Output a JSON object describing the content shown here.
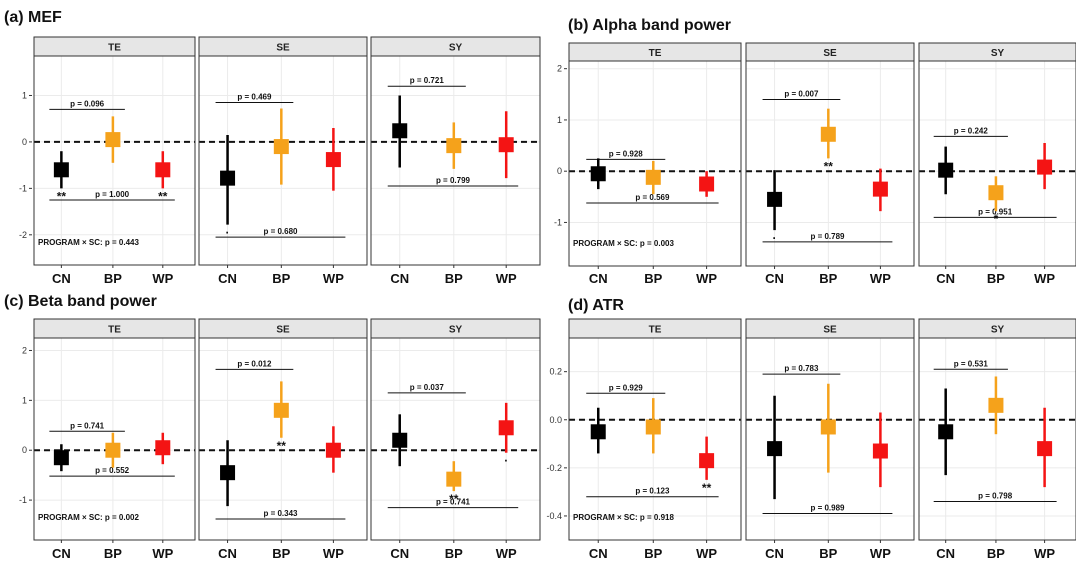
{
  "colors": {
    "CN": "#000000",
    "BP": "#f5a21b",
    "WP": "#f41414",
    "strip_bg": "#e6e6e6",
    "panel_border": "#333333",
    "grid": "#ebebeb",
    "zero_line": "#111111"
  },
  "chart_data": [
    {
      "id": "a",
      "type": "scatter",
      "title": "(a) MEF",
      "facets": [
        "TE",
        "SE",
        "SY"
      ],
      "categories": [
        "CN",
        "BP",
        "WP"
      ],
      "ylim": [
        -2.65,
        1.85
      ],
      "yticks": [
        1,
        0,
        -1,
        -2
      ],
      "ytick_labels": [
        "1",
        "0",
        "-1",
        "-2"
      ],
      "zero_line": true,
      "program_sc": "PROGRAM × SC: p = 0.443",
      "groups": [
        {
          "facet": "TE",
          "points": [
            {
              "category": "CN",
              "value": -0.6,
              "lower": -1.0,
              "upper": -0.2,
              "sig": "**"
            },
            {
              "category": "BP",
              "value": 0.05,
              "lower": -0.45,
              "upper": 0.55,
              "sig": ""
            },
            {
              "category": "WP",
              "value": -0.6,
              "lower": -1.0,
              "upper": -0.2,
              "sig": "**"
            }
          ],
          "comparisons": [
            {
              "from": "CN",
              "to": "BP",
              "label": "p = 0.096",
              "y": 0.7
            },
            {
              "from": "CN",
              "to": "WP",
              "label": "p = 1.000",
              "y": -1.25
            }
          ]
        },
        {
          "facet": "SE",
          "points": [
            {
              "category": "CN",
              "value": -0.78,
              "lower": -1.78,
              "upper": 0.15,
              "sig": "·"
            },
            {
              "category": "BP",
              "value": -0.1,
              "lower": -0.92,
              "upper": 0.72,
              "sig": ""
            },
            {
              "category": "WP",
              "value": -0.38,
              "lower": -1.05,
              "upper": 0.3,
              "sig": ""
            }
          ],
          "comparisons": [
            {
              "from": "CN",
              "to": "BP",
              "label": "p = 0.469",
              "y": 0.85
            },
            {
              "from": "CN",
              "to": "WP",
              "label": "p = 0.680",
              "y": -2.05
            }
          ]
        },
        {
          "facet": "SY",
          "points": [
            {
              "category": "CN",
              "value": 0.24,
              "lower": -0.55,
              "upper": 1.0,
              "sig": ""
            },
            {
              "category": "BP",
              "value": -0.08,
              "lower": -0.58,
              "upper": 0.42,
              "sig": ""
            },
            {
              "category": "WP",
              "value": -0.06,
              "lower": -0.78,
              "upper": 0.66,
              "sig": ""
            }
          ],
          "comparisons": [
            {
              "from": "CN",
              "to": "BP",
              "label": "p = 0.721",
              "y": 1.2
            },
            {
              "from": "CN",
              "to": "WP",
              "label": "p = 0.799",
              "y": -0.95
            }
          ]
        }
      ]
    },
    {
      "id": "b",
      "type": "scatter",
      "title": "(b) Alpha band power",
      "facets": [
        "TE",
        "SE",
        "SY"
      ],
      "categories": [
        "CN",
        "BP",
        "WP"
      ],
      "ylim": [
        -1.85,
        2.15
      ],
      "yticks": [
        2,
        1,
        0,
        -1
      ],
      "ytick_labels": [
        "2",
        "1",
        "0",
        "-1"
      ],
      "zero_line": true,
      "program_sc": "PROGRAM × SC: p = 0.003",
      "groups": [
        {
          "facet": "TE",
          "points": [
            {
              "category": "CN",
              "value": -0.05,
              "lower": -0.35,
              "upper": 0.25,
              "sig": ""
            },
            {
              "category": "BP",
              "value": -0.12,
              "lower": -0.45,
              "upper": 0.2,
              "sig": ""
            },
            {
              "category": "WP",
              "value": -0.25,
              "lower": -0.5,
              "upper": 0.0,
              "sig": ""
            }
          ],
          "comparisons": [
            {
              "from": "CN",
              "to": "BP",
              "label": "p = 0.928",
              "y": 0.23
            },
            {
              "from": "CN",
              "to": "WP",
              "label": "p = 0.569",
              "y": -0.62
            }
          ]
        },
        {
          "facet": "SE",
          "points": [
            {
              "category": "CN",
              "value": -0.55,
              "lower": -1.15,
              "upper": 0.02,
              "sig": "·"
            },
            {
              "category": "BP",
              "value": 0.72,
              "lower": 0.25,
              "upper": 1.22,
              "sig": "**"
            },
            {
              "category": "WP",
              "value": -0.35,
              "lower": -0.78,
              "upper": 0.05,
              "sig": ""
            }
          ],
          "comparisons": [
            {
              "from": "CN",
              "to": "BP",
              "label": "p = 0.007",
              "y": 1.4
            },
            {
              "from": "CN",
              "to": "WP",
              "label": "p = 0.789",
              "y": -1.38
            }
          ]
        },
        {
          "facet": "SY",
          "points": [
            {
              "category": "CN",
              "value": 0.02,
              "lower": -0.45,
              "upper": 0.48,
              "sig": ""
            },
            {
              "category": "BP",
              "value": -0.42,
              "lower": -0.78,
              "upper": -0.1,
              "sig": "*"
            },
            {
              "category": "WP",
              "value": 0.08,
              "lower": -0.35,
              "upper": 0.55,
              "sig": ""
            }
          ],
          "comparisons": [
            {
              "from": "CN",
              "to": "BP",
              "label": "p = 0.242",
              "y": 0.68
            },
            {
              "from": "CN",
              "to": "WP",
              "label": "p = 0.951",
              "y": -0.9
            }
          ]
        }
      ]
    },
    {
      "id": "c",
      "type": "scatter",
      "title": "(c) Beta band power",
      "facets": [
        "TE",
        "SE",
        "SY"
      ],
      "categories": [
        "CN",
        "BP",
        "WP"
      ],
      "ylim": [
        -1.8,
        2.25
      ],
      "yticks": [
        2,
        1,
        0,
        -1
      ],
      "ytick_labels": [
        "2",
        "1",
        "0",
        "-1"
      ],
      "zero_line": true,
      "program_sc": "PROGRAM × SC: p = 0.002",
      "groups": [
        {
          "facet": "TE",
          "points": [
            {
              "category": "CN",
              "value": -0.15,
              "lower": -0.42,
              "upper": 0.12,
              "sig": ""
            },
            {
              "category": "BP",
              "value": 0.0,
              "lower": -0.35,
              "upper": 0.35,
              "sig": ""
            },
            {
              "category": "WP",
              "value": 0.05,
              "lower": -0.28,
              "upper": 0.35,
              "sig": ""
            }
          ],
          "comparisons": [
            {
              "from": "CN",
              "to": "BP",
              "label": "p = 0.741",
              "y": 0.38
            },
            {
              "from": "CN",
              "to": "WP",
              "label": "p = 0.552",
              "y": -0.52
            }
          ]
        },
        {
          "facet": "SE",
          "points": [
            {
              "category": "CN",
              "value": -0.45,
              "lower": -1.12,
              "upper": 0.2,
              "sig": ""
            },
            {
              "category": "BP",
              "value": 0.8,
              "lower": 0.25,
              "upper": 1.38,
              "sig": "**"
            },
            {
              "category": "WP",
              "value": 0.0,
              "lower": -0.45,
              "upper": 0.48,
              "sig": ""
            }
          ],
          "comparisons": [
            {
              "from": "CN",
              "to": "BP",
              "label": "p = 0.012",
              "y": 1.62
            },
            {
              "from": "CN",
              "to": "WP",
              "label": "p = 0.343",
              "y": -1.38
            }
          ]
        },
        {
          "facet": "SY",
          "points": [
            {
              "category": "CN",
              "value": 0.2,
              "lower": -0.32,
              "upper": 0.72,
              "sig": ""
            },
            {
              "category": "BP",
              "value": -0.58,
              "lower": -0.82,
              "upper": -0.22,
              "sig": "**"
            },
            {
              "category": "WP",
              "value": 0.45,
              "lower": -0.05,
              "upper": 0.95,
              "sig": "·"
            }
          ],
          "comparisons": [
            {
              "from": "CN",
              "to": "BP",
              "label": "p = 0.037",
              "y": 1.15
            },
            {
              "from": "CN",
              "to": "WP",
              "label": "p = 0.741",
              "y": -1.15
            }
          ]
        }
      ]
    },
    {
      "id": "d",
      "type": "scatter",
      "title": "(d) ATR",
      "facets": [
        "TE",
        "SE",
        "SY"
      ],
      "categories": [
        "CN",
        "BP",
        "WP"
      ],
      "ylim": [
        -0.5,
        0.34
      ],
      "yticks": [
        0.2,
        0.0,
        -0.2,
        -0.4
      ],
      "ytick_labels": [
        "0.2",
        "0.0",
        "-0.2",
        "-0.4"
      ],
      "zero_line": true,
      "program_sc": "PROGRAM × SC: p = 0.918",
      "groups": [
        {
          "facet": "TE",
          "points": [
            {
              "category": "CN",
              "value": -0.05,
              "lower": -0.14,
              "upper": 0.05,
              "sig": ""
            },
            {
              "category": "BP",
              "value": -0.03,
              "lower": -0.14,
              "upper": 0.09,
              "sig": ""
            },
            {
              "category": "WP",
              "value": -0.17,
              "lower": -0.25,
              "upper": -0.07,
              "sig": "**"
            }
          ],
          "comparisons": [
            {
              "from": "CN",
              "to": "BP",
              "label": "p = 0.929",
              "y": 0.11
            },
            {
              "from": "CN",
              "to": "WP",
              "label": "p = 0.123",
              "y": -0.32
            }
          ]
        },
        {
          "facet": "SE",
          "points": [
            {
              "category": "CN",
              "value": -0.12,
              "lower": -0.33,
              "upper": 0.1,
              "sig": ""
            },
            {
              "category": "BP",
              "value": -0.03,
              "lower": -0.22,
              "upper": 0.15,
              "sig": ""
            },
            {
              "category": "WP",
              "value": -0.13,
              "lower": -0.28,
              "upper": 0.03,
              "sig": ""
            }
          ],
          "comparisons": [
            {
              "from": "CN",
              "to": "BP",
              "label": "p = 0.783",
              "y": 0.19
            },
            {
              "from": "CN",
              "to": "WP",
              "label": "p = 0.989",
              "y": -0.39
            }
          ]
        },
        {
          "facet": "SY",
          "points": [
            {
              "category": "CN",
              "value": -0.05,
              "lower": -0.23,
              "upper": 0.13,
              "sig": ""
            },
            {
              "category": "BP",
              "value": 0.06,
              "lower": -0.06,
              "upper": 0.18,
              "sig": ""
            },
            {
              "category": "WP",
              "value": -0.12,
              "lower": -0.28,
              "upper": 0.05,
              "sig": ""
            }
          ],
          "comparisons": [
            {
              "from": "CN",
              "to": "BP",
              "label": "p = 0.531",
              "y": 0.21
            },
            {
              "from": "CN",
              "to": "WP",
              "label": "p = 0.798",
              "y": -0.34
            }
          ]
        }
      ]
    }
  ]
}
